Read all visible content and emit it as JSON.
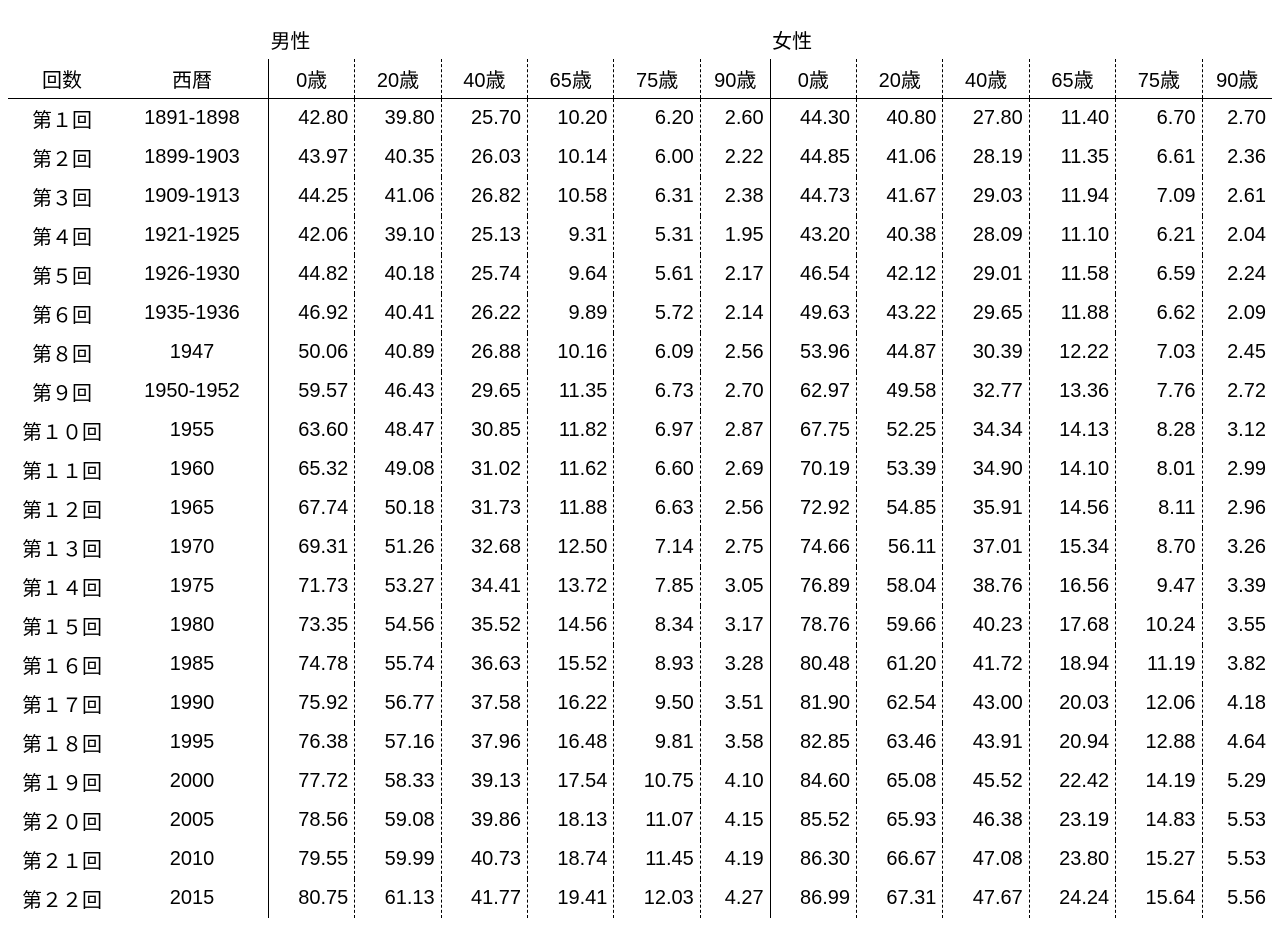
{
  "table": {
    "type": "table",
    "background_color": "#ffffff",
    "text_color": "#000000",
    "border_color": "#000000",
    "font_size_pt": 15,
    "groups": {
      "male": "男性",
      "female": "女性"
    },
    "columns": {
      "round": "回数",
      "year": "西暦",
      "ages": [
        "0歳",
        "20歳",
        "40歳",
        "65歳",
        "75歳",
        "90歳"
      ]
    },
    "column_align": {
      "round": "center",
      "year": "center",
      "data": "right"
    },
    "column_borders": {
      "group_start": "solid",
      "within_group": "dashed"
    },
    "rows": [
      {
        "round": "第１回",
        "year": "1891-1898",
        "m": [
          "42.80",
          "39.80",
          "25.70",
          "10.20",
          "6.20",
          "2.60"
        ],
        "f": [
          "44.30",
          "40.80",
          "27.80",
          "11.40",
          "6.70",
          "2.70"
        ]
      },
      {
        "round": "第２回",
        "year": "1899-1903",
        "m": [
          "43.97",
          "40.35",
          "26.03",
          "10.14",
          "6.00",
          "2.22"
        ],
        "f": [
          "44.85",
          "41.06",
          "28.19",
          "11.35",
          "6.61",
          "2.36"
        ]
      },
      {
        "round": "第３回",
        "year": "1909-1913",
        "m": [
          "44.25",
          "41.06",
          "26.82",
          "10.58",
          "6.31",
          "2.38"
        ],
        "f": [
          "44.73",
          "41.67",
          "29.03",
          "11.94",
          "7.09",
          "2.61"
        ]
      },
      {
        "round": "第４回",
        "year": "1921-1925",
        "m": [
          "42.06",
          "39.10",
          "25.13",
          "9.31",
          "5.31",
          "1.95"
        ],
        "f": [
          "43.20",
          "40.38",
          "28.09",
          "11.10",
          "6.21",
          "2.04"
        ]
      },
      {
        "round": "第５回",
        "year": "1926-1930",
        "m": [
          "44.82",
          "40.18",
          "25.74",
          "9.64",
          "5.61",
          "2.17"
        ],
        "f": [
          "46.54",
          "42.12",
          "29.01",
          "11.58",
          "6.59",
          "2.24"
        ]
      },
      {
        "round": "第６回",
        "year": "1935-1936",
        "m": [
          "46.92",
          "40.41",
          "26.22",
          "9.89",
          "5.72",
          "2.14"
        ],
        "f": [
          "49.63",
          "43.22",
          "29.65",
          "11.88",
          "6.62",
          "2.09"
        ]
      },
      {
        "round": "第８回",
        "year": "1947",
        "m": [
          "50.06",
          "40.89",
          "26.88",
          "10.16",
          "6.09",
          "2.56"
        ],
        "f": [
          "53.96",
          "44.87",
          "30.39",
          "12.22",
          "7.03",
          "2.45"
        ]
      },
      {
        "round": "第９回",
        "year": "1950-1952",
        "m": [
          "59.57",
          "46.43",
          "29.65",
          "11.35",
          "6.73",
          "2.70"
        ],
        "f": [
          "62.97",
          "49.58",
          "32.77",
          "13.36",
          "7.76",
          "2.72"
        ]
      },
      {
        "round": "第１０回",
        "year": "1955",
        "m": [
          "63.60",
          "48.47",
          "30.85",
          "11.82",
          "6.97",
          "2.87"
        ],
        "f": [
          "67.75",
          "52.25",
          "34.34",
          "14.13",
          "8.28",
          "3.12"
        ]
      },
      {
        "round": "第１１回",
        "year": "1960",
        "m": [
          "65.32",
          "49.08",
          "31.02",
          "11.62",
          "6.60",
          "2.69"
        ],
        "f": [
          "70.19",
          "53.39",
          "34.90",
          "14.10",
          "8.01",
          "2.99"
        ]
      },
      {
        "round": "第１２回",
        "year": "1965",
        "m": [
          "67.74",
          "50.18",
          "31.73",
          "11.88",
          "6.63",
          "2.56"
        ],
        "f": [
          "72.92",
          "54.85",
          "35.91",
          "14.56",
          "8.11",
          "2.96"
        ]
      },
      {
        "round": "第１３回",
        "year": "1970",
        "m": [
          "69.31",
          "51.26",
          "32.68",
          "12.50",
          "7.14",
          "2.75"
        ],
        "f": [
          "74.66",
          "56.11",
          "37.01",
          "15.34",
          "8.70",
          "3.26"
        ]
      },
      {
        "round": "第１４回",
        "year": "1975",
        "m": [
          "71.73",
          "53.27",
          "34.41",
          "13.72",
          "7.85",
          "3.05"
        ],
        "f": [
          "76.89",
          "58.04",
          "38.76",
          "16.56",
          "9.47",
          "3.39"
        ]
      },
      {
        "round": "第１５回",
        "year": "1980",
        "m": [
          "73.35",
          "54.56",
          "35.52",
          "14.56",
          "8.34",
          "3.17"
        ],
        "f": [
          "78.76",
          "59.66",
          "40.23",
          "17.68",
          "10.24",
          "3.55"
        ]
      },
      {
        "round": "第１６回",
        "year": "1985",
        "m": [
          "74.78",
          "55.74",
          "36.63",
          "15.52",
          "8.93",
          "3.28"
        ],
        "f": [
          "80.48",
          "61.20",
          "41.72",
          "18.94",
          "11.19",
          "3.82"
        ]
      },
      {
        "round": "第１７回",
        "year": "1990",
        "m": [
          "75.92",
          "56.77",
          "37.58",
          "16.22",
          "9.50",
          "3.51"
        ],
        "f": [
          "81.90",
          "62.54",
          "43.00",
          "20.03",
          "12.06",
          "4.18"
        ]
      },
      {
        "round": "第１８回",
        "year": "1995",
        "m": [
          "76.38",
          "57.16",
          "37.96",
          "16.48",
          "9.81",
          "3.58"
        ],
        "f": [
          "82.85",
          "63.46",
          "43.91",
          "20.94",
          "12.88",
          "4.64"
        ]
      },
      {
        "round": "第１９回",
        "year": "2000",
        "m": [
          "77.72",
          "58.33",
          "39.13",
          "17.54",
          "10.75",
          "4.10"
        ],
        "f": [
          "84.60",
          "65.08",
          "45.52",
          "22.42",
          "14.19",
          "5.29"
        ]
      },
      {
        "round": "第２０回",
        "year": "2005",
        "m": [
          "78.56",
          "59.08",
          "39.86",
          "18.13",
          "11.07",
          "4.15"
        ],
        "f": [
          "85.52",
          "65.93",
          "46.38",
          "23.19",
          "14.83",
          "5.53"
        ]
      },
      {
        "round": "第２１回",
        "year": "2010",
        "m": [
          "79.55",
          "59.99",
          "40.73",
          "18.74",
          "11.45",
          "4.19"
        ],
        "f": [
          "86.30",
          "66.67",
          "47.08",
          "23.80",
          "15.27",
          "5.53"
        ]
      },
      {
        "round": "第２２回",
        "year": "2015",
        "m": [
          "80.75",
          "61.13",
          "41.77",
          "19.41",
          "12.03",
          "4.27"
        ],
        "f": [
          "86.99",
          "67.31",
          "47.67",
          "24.24",
          "15.64",
          "5.56"
        ]
      }
    ]
  }
}
